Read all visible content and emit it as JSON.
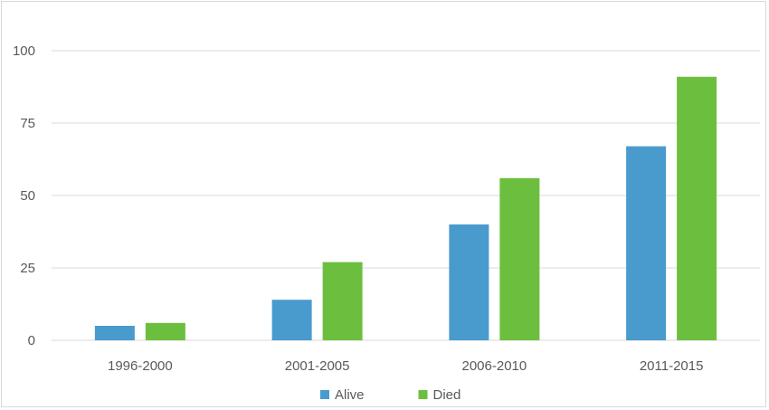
{
  "chart_data": {
    "type": "bar",
    "categories": [
      "1996-2000",
      "2001-2005",
      "2006-2010",
      "2011-2015"
    ],
    "series": [
      {
        "name": "Alive",
        "color": "#4a9bcd",
        "values": [
          5,
          14,
          40,
          67
        ]
      },
      {
        "name": "Died",
        "color": "#6cbf3e",
        "values": [
          6,
          27,
          56,
          91
        ]
      }
    ],
    "y_ticks": [
      "0",
      "25",
      "50",
      "75",
      "100"
    ],
    "ylim": [
      0,
      100
    ],
    "grid": true,
    "grid_color": "#d9d9d9",
    "legend_position": "bottom"
  }
}
